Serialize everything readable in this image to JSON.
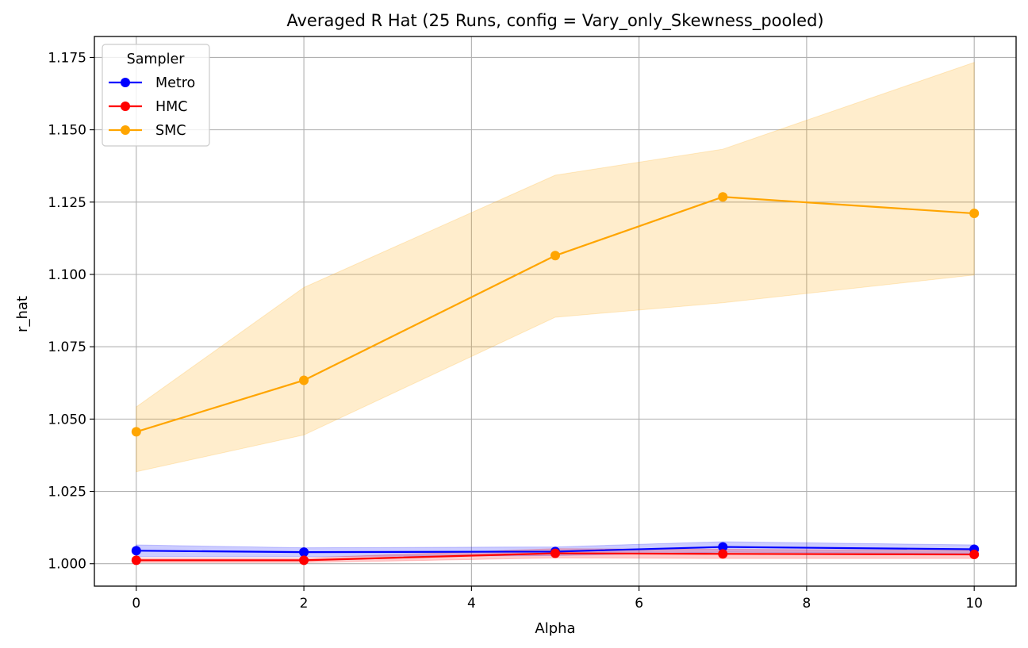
{
  "chart_data": {
    "type": "line",
    "title": "Averaged R Hat (25 Runs, config = Vary_only_Skewness_pooled)",
    "xlabel": "Alpha",
    "ylabel": "r_hat",
    "xlim": [
      -0.5,
      10.5
    ],
    "ylim": [
      0.99225,
      1.18225
    ],
    "xticks": [
      0,
      2,
      4,
      6,
      8,
      10
    ],
    "xtick_labels": [
      "0",
      "2",
      "4",
      "6",
      "8",
      "10"
    ],
    "yticks": [
      1.0,
      1.025,
      1.05,
      1.075,
      1.1,
      1.125,
      1.15,
      1.175
    ],
    "ytick_labels": [
      "1.000",
      "1.025",
      "1.050",
      "1.075",
      "1.100",
      "1.125",
      "1.150",
      "1.175"
    ],
    "grid": true,
    "legend": {
      "title": "Sampler",
      "placement": "upper-left"
    },
    "x": [
      0,
      2,
      5,
      7,
      10
    ],
    "series": [
      {
        "name": "Metro",
        "color": "#0000ff",
        "values": [
          1.0045,
          1.004,
          1.0042,
          1.0058,
          1.005
        ],
        "lower": [
          1.0025,
          1.0025,
          1.0028,
          1.004,
          1.0035
        ],
        "upper": [
          1.0065,
          1.0055,
          1.0058,
          1.0076,
          1.0065
        ]
      },
      {
        "name": "HMC",
        "color": "#ff0000",
        "values": [
          1.0012,
          1.0012,
          1.0036,
          1.0034,
          1.0032
        ],
        "lower": [
          1.0004,
          1.0004,
          1.002,
          1.0018,
          1.0018
        ],
        "upper": [
          1.002,
          1.002,
          1.0052,
          1.005,
          1.0046
        ]
      },
      {
        "name": "SMC",
        "color": "#ffa500",
        "values": [
          1.0456,
          1.0634,
          1.1065,
          1.1268,
          1.1211
        ],
        "lower": [
          1.0318,
          1.0445,
          1.0852,
          1.0902,
          1.0998
        ],
        "upper": [
          1.0542,
          1.0955,
          1.1343,
          1.1433,
          1.1733
        ]
      }
    ]
  }
}
